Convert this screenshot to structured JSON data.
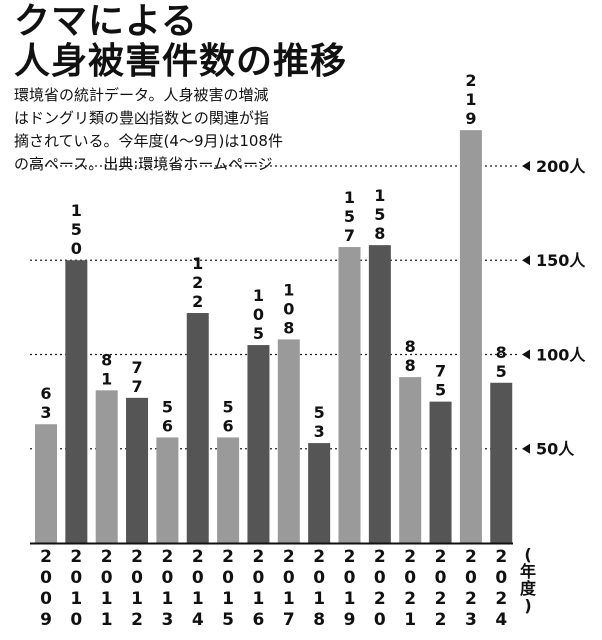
{
  "header": {
    "title_lines": [
      "クマによる",
      "人身被害件数の推移"
    ],
    "subtitle_lines": [
      "環境省の統計データ。人身被害の増減",
      "はドングリ類の豊凶指数との関連が指",
      "摘されている。今年度(4〜9月)は108件",
      "の高ペース。出典:環境省ホームページ"
    ]
  },
  "chart_data": {
    "type": "bar",
    "title": "クマによる人身被害件数の推移",
    "xlabel": "(年度)",
    "ylabel": "",
    "categories": [
      "2009",
      "2010",
      "2011",
      "2012",
      "2013",
      "2014",
      "2015",
      "2016",
      "2017",
      "2018",
      "2019",
      "2020",
      "2021",
      "2022",
      "2023",
      "2024"
    ],
    "values": [
      63,
      150,
      81,
      77,
      56,
      122,
      56,
      105,
      108,
      53,
      157,
      158,
      88,
      75,
      219,
      85
    ],
    "value_labels": [
      "63",
      "150",
      "81",
      "77",
      "56",
      "122",
      "56",
      "105",
      "108",
      "53",
      "157",
      "158",
      "88",
      "75",
      "219",
      "85"
    ],
    "ylim": [
      0,
      235
    ],
    "yticks": [
      50,
      100,
      150,
      200
    ],
    "ytick_labels": [
      "50人",
      "100人",
      "150人",
      "200人"
    ],
    "grid": "dotted horizontal lines at ticks",
    "colors": {
      "light": "#9a9a9a",
      "dark": "#555555",
      "text": "#111111"
    }
  }
}
